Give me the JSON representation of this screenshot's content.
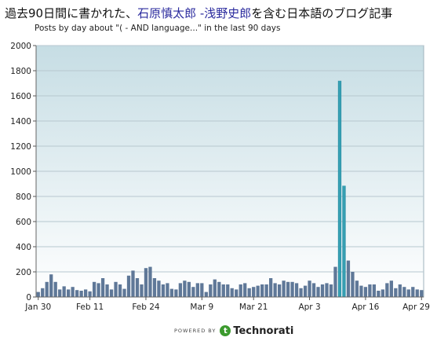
{
  "header": {
    "title_prefix": "過去90日間に書かれた、",
    "title_query": "石原慎太郎 -浅野史郎",
    "title_suffix": "を含む日本語のブログ記事",
    "subtitle": "Posts by day about \"(      -      AND language...\" in the last 90 days"
  },
  "footer": {
    "powered_by": "POWERED BY",
    "logo_letter": "t",
    "brand": "Technorati"
  },
  "colors": {
    "bar": "#5f7898",
    "bar_spike": "#3aa6b9",
    "plot_top": "#c6dde4",
    "plot_bottom": "#ffffff",
    "grid": "#b7c7cf"
  },
  "chart_data": {
    "type": "bar",
    "title": "",
    "xlabel": "",
    "ylabel": "",
    "ylim": [
      0,
      2000
    ],
    "yticks": [
      0,
      200,
      400,
      600,
      800,
      1000,
      1200,
      1400,
      1600,
      1800,
      2000
    ],
    "grid": true,
    "x_tick_labels": [
      {
        "label": "Jan 30",
        "index": 0
      },
      {
        "label": "Feb 11",
        "index": 12
      },
      {
        "label": "Feb 24",
        "index": 25
      },
      {
        "label": "Mar 9",
        "index": 38
      },
      {
        "label": "Mar 21",
        "index": 50
      },
      {
        "label": "Apr 3",
        "index": 63
      },
      {
        "label": "Apr 16",
        "index": 76
      },
      {
        "label": "Apr 29",
        "index": 89
      }
    ],
    "values": [
      40,
      70,
      120,
      180,
      120,
      60,
      85,
      60,
      80,
      55,
      50,
      60,
      45,
      120,
      110,
      150,
      100,
      60,
      120,
      100,
      65,
      170,
      210,
      150,
      100,
      230,
      240,
      150,
      130,
      100,
      110,
      65,
      60,
      110,
      130,
      120,
      80,
      110,
      110,
      40,
      100,
      140,
      120,
      100,
      100,
      70,
      60,
      100,
      110,
      70,
      80,
      90,
      100,
      100,
      150,
      110,
      100,
      130,
      120,
      120,
      110,
      70,
      90,
      130,
      110,
      80,
      100,
      110,
      100,
      240,
      1720,
      885,
      290,
      200,
      130,
      90,
      80,
      100,
      100,
      50,
      60,
      110,
      130,
      70,
      100,
      80,
      60,
      80,
      60,
      55
    ],
    "spike_indices": [
      70,
      71
    ]
  }
}
